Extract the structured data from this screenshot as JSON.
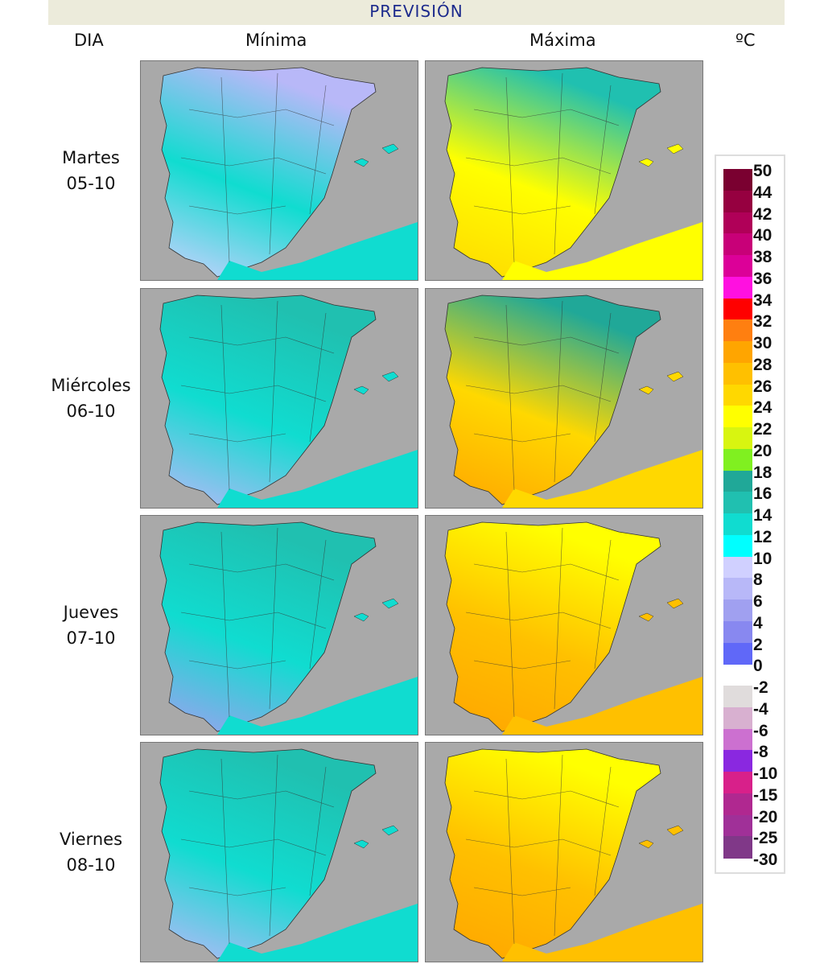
{
  "header": {
    "title": "PREVISIÓN"
  },
  "columns": {
    "day": "DIA",
    "min": "Mínima",
    "max": "Máxima",
    "unit": "ºC"
  },
  "days": [
    {
      "name": "Martes",
      "date": "05-10",
      "min_colors": [
        "#d0d0ff",
        "#10dcd0",
        "#b8b8f8"
      ],
      "max_colors": [
        "#ffd800",
        "#ffff00",
        "#20c0b0"
      ]
    },
    {
      "name": "Miércoles",
      "date": "06-10",
      "min_colors": [
        "#b8b8f8",
        "#10dcd0",
        "#20c0b0"
      ],
      "max_colors": [
        "#ffa500",
        "#ffd800",
        "#20a898"
      ]
    },
    {
      "name": "Jueves",
      "date": "07-10",
      "min_colors": [
        "#a0a0f0",
        "#10dcd0",
        "#20c0b0"
      ],
      "max_colors": [
        "#ffa500",
        "#ffc000",
        "#ffff00"
      ]
    },
    {
      "name": "Viernes",
      "date": "08-10",
      "min_colors": [
        "#b8b8f8",
        "#10dcd0",
        "#20c0b0"
      ],
      "max_colors": [
        "#ffa500",
        "#ffc000",
        "#ffff00"
      ]
    }
  ],
  "legend": {
    "positive_labels": [
      "50",
      "44",
      "42",
      "40",
      "38",
      "36",
      "34",
      "32",
      "30",
      "28",
      "26",
      "24",
      "22",
      "20",
      "18",
      "16",
      "14",
      "12",
      "10",
      "8",
      "6",
      "4",
      "2",
      "0"
    ],
    "positive_colors": [
      "#7a0030",
      "#960040",
      "#b00058",
      "#c80078",
      "#dc0098",
      "#ff10e0",
      "#ff0000",
      "#ff7f10",
      "#ffa500",
      "#ffc000",
      "#ffd800",
      "#ffff00",
      "#d8f510",
      "#80f020",
      "#20a898",
      "#20c0b0",
      "#10dcd0",
      "#00ffff",
      "#d0d0ff",
      "#b8b8f8",
      "#a0a0f0",
      "#8888f0",
      "#6068f8"
    ],
    "negative_labels": [
      "-2",
      "-4",
      "-6",
      "-8",
      "-10",
      "-15",
      "-20",
      "-25",
      "-30"
    ],
    "negative_colors": [
      "#e0dcdc",
      "#d8b0d0",
      "#cc70d0",
      "#8a28e0",
      "#d8208a",
      "#b02890",
      "#a03098",
      "#803888"
    ]
  }
}
